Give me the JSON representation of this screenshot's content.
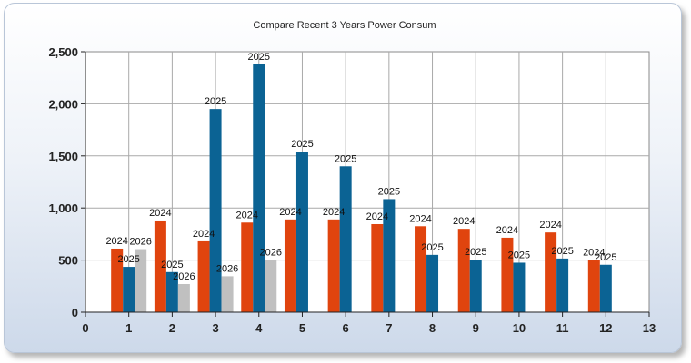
{
  "chart_data": {
    "type": "bar",
    "title": "Compare Recent 3 Years Power Consum",
    "xlabel": "",
    "ylabel": "",
    "categories": [
      1,
      2,
      3,
      4,
      5,
      6,
      7,
      8,
      9,
      10,
      11,
      12
    ],
    "x_ticks": [
      "0",
      "1",
      "2",
      "3",
      "4",
      "5",
      "6",
      "7",
      "8",
      "9",
      "10",
      "11",
      "12",
      "13"
    ],
    "y_ticks": [
      "0",
      "500",
      "1,000",
      "1,500",
      "2,000",
      "2,500"
    ],
    "xlim": [
      0,
      13
    ],
    "ylim": [
      0,
      2500
    ],
    "grid": true,
    "series": [
      {
        "name": "2024",
        "color": "#e0440e",
        "values": [
          610,
          880,
          680,
          860,
          890,
          890,
          845,
          825,
          800,
          715,
          765,
          500
        ]
      },
      {
        "name": "2025",
        "color": "#0b6394",
        "values": [
          435,
          385,
          1950,
          2380,
          1540,
          1400,
          1085,
          550,
          505,
          475,
          515,
          455
        ]
      },
      {
        "name": "2026",
        "color": "#c0c0c0",
        "values": [
          605,
          270,
          345,
          500,
          null,
          null,
          null,
          null,
          null,
          null,
          null,
          null
        ]
      }
    ]
  }
}
